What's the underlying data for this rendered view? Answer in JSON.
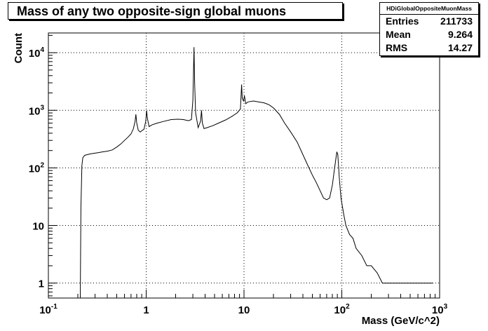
{
  "chart_data": {
    "type": "line",
    "title": "Mass of any two opposite-sign global muons",
    "xlabel": "Mass (GeV/c^2)",
    "ylabel": "Count",
    "x_scale": "log",
    "y_scale": "log",
    "xlim": [
      0.1,
      1000
    ],
    "ylim": [
      0.55,
      22000
    ],
    "grid": true,
    "x_ticks": [
      {
        "value": 0.1,
        "label": "10",
        "exp": "-1"
      },
      {
        "value": 1,
        "label": "1",
        "exp": ""
      },
      {
        "value": 10,
        "label": "10",
        "exp": ""
      },
      {
        "value": 100,
        "label": "10",
        "exp": "2"
      },
      {
        "value": 1000,
        "label": "10",
        "exp": "3"
      }
    ],
    "y_ticks": [
      {
        "value": 1,
        "label": "1",
        "exp": ""
      },
      {
        "value": 10,
        "label": "10",
        "exp": ""
      },
      {
        "value": 100,
        "label": "10",
        "exp": "2"
      },
      {
        "value": 1000,
        "label": "10",
        "exp": "3"
      },
      {
        "value": 10000,
        "label": "10",
        "exp": "4"
      }
    ],
    "series": [
      {
        "points": [
          [
            0.212,
            0.55
          ],
          [
            0.215,
            20
          ],
          [
            0.22,
            110
          ],
          [
            0.225,
            150
          ],
          [
            0.235,
            165
          ],
          [
            0.25,
            170
          ],
          [
            0.27,
            175
          ],
          [
            0.3,
            180
          ],
          [
            0.33,
            185
          ],
          [
            0.36,
            190
          ],
          [
            0.4,
            195
          ],
          [
            0.45,
            205
          ],
          [
            0.5,
            230
          ],
          [
            0.55,
            260
          ],
          [
            0.6,
            300
          ],
          [
            0.65,
            340
          ],
          [
            0.7,
            390
          ],
          [
            0.74,
            480
          ],
          [
            0.77,
            650
          ],
          [
            0.785,
            850
          ],
          [
            0.8,
            600
          ],
          [
            0.83,
            450
          ],
          [
            0.87,
            420
          ],
          [
            0.9,
            440
          ],
          [
            0.95,
            470
          ],
          [
            0.99,
            650
          ],
          [
            1.01,
            980
          ],
          [
            1.03,
            720
          ],
          [
            1.07,
            520
          ],
          [
            1.15,
            560
          ],
          [
            1.3,
            600
          ],
          [
            1.5,
            640
          ],
          [
            1.8,
            690
          ],
          [
            2.1,
            700
          ],
          [
            2.4,
            690
          ],
          [
            2.7,
            660
          ],
          [
            2.9,
            690
          ],
          [
            3.0,
            1500
          ],
          [
            3.08,
            12500
          ],
          [
            3.13,
            3000
          ],
          [
            3.2,
            900
          ],
          [
            3.4,
            500
          ],
          [
            3.6,
            650
          ],
          [
            3.68,
            1000
          ],
          [
            3.75,
            600
          ],
          [
            3.9,
            480
          ],
          [
            4.2,
            500
          ],
          [
            4.8,
            540
          ],
          [
            5.5,
            600
          ],
          [
            6.5,
            680
          ],
          [
            7.5,
            780
          ],
          [
            8.5,
            900
          ],
          [
            9.2,
            1050
          ],
          [
            9.45,
            2800
          ],
          [
            9.6,
            1600
          ],
          [
            9.9,
            1450
          ],
          [
            10.1,
            1800
          ],
          [
            10.4,
            1300
          ],
          [
            11,
            1400
          ],
          [
            12.5,
            1450
          ],
          [
            14,
            1400
          ],
          [
            16,
            1350
          ],
          [
            18,
            1250
          ],
          [
            20,
            1100
          ],
          [
            23,
            850
          ],
          [
            26,
            600
          ],
          [
            30,
            420
          ],
          [
            35,
            280
          ],
          [
            40,
            170
          ],
          [
            45,
            110
          ],
          [
            50,
            75
          ],
          [
            55,
            55
          ],
          [
            60,
            40
          ],
          [
            65,
            30
          ],
          [
            70,
            28
          ],
          [
            75,
            30
          ],
          [
            80,
            50
          ],
          [
            85,
            110
          ],
          [
            89,
            190
          ],
          [
            91,
            170
          ],
          [
            94,
            70
          ],
          [
            98,
            30
          ],
          [
            105,
            15
          ],
          [
            110,
            10
          ],
          [
            120,
            7
          ],
          [
            130,
            6
          ],
          [
            140,
            4
          ],
          [
            160,
            3
          ],
          [
            180,
            2
          ],
          [
            200,
            2
          ],
          [
            230,
            1.5
          ],
          [
            260,
            1
          ],
          [
            300,
            1
          ],
          [
            350,
            1
          ],
          [
            400,
            1
          ],
          [
            500,
            1
          ],
          [
            600,
            1
          ],
          [
            700,
            1
          ],
          [
            850,
            1
          ]
        ]
      }
    ]
  },
  "stats": {
    "name": "HDiGlobalOppositeMuonMass",
    "rows": [
      {
        "key": "Entries",
        "value": "211733"
      },
      {
        "key": "Mean",
        "value": "9.264"
      },
      {
        "key": "RMS",
        "value": "14.27"
      }
    ]
  }
}
